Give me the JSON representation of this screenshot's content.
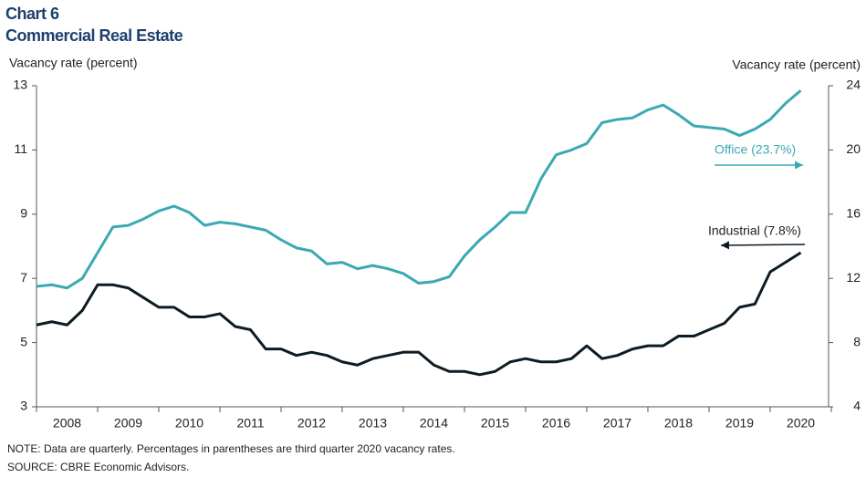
{
  "chart_data": {
    "type": "line",
    "title": "Chart 6",
    "subtitle": "Commercial Real Estate",
    "ylabel": "Vacancy rate (percent)",
    "y2label": "Vacancy rate (percent)",
    "note": "NOTE: Data are quarterly. Percentages in parentheses are third quarter 2020 vacancy rates.",
    "source": "SOURCE: CBRE Economic Advisors.",
    "categories": [
      "2008",
      "2009",
      "2010",
      "2011",
      "2012",
      "2013",
      "2014",
      "2015",
      "2016",
      "2017",
      "2018",
      "2019",
      "2020"
    ],
    "x": [
      2008,
      2008.25,
      2008.5,
      2008.75,
      2009,
      2009.25,
      2009.5,
      2009.75,
      2010,
      2010.25,
      2010.5,
      2010.75,
      2011,
      2011.25,
      2011.5,
      2011.75,
      2012,
      2012.25,
      2012.5,
      2012.75,
      2013,
      2013.25,
      2013.5,
      2013.75,
      2014,
      2014.25,
      2014.5,
      2014.75,
      2015,
      2015.25,
      2015.5,
      2015.75,
      2016,
      2016.25,
      2016.5,
      2016.75,
      2017,
      2017.25,
      2017.5,
      2017.75,
      2018,
      2018.25,
      2018.5,
      2018.75,
      2019,
      2019.25,
      2019.5,
      2019.75,
      2020,
      2020.25,
      2020.5
    ],
    "xlim": [
      2008,
      2021
    ],
    "xticks": [
      2008,
      2009,
      2010,
      2011,
      2012,
      2013,
      2014,
      2015,
      2016,
      2017,
      2018,
      2019,
      2020,
      2021
    ],
    "ylim": [
      3,
      13
    ],
    "yticks": [
      3,
      5,
      7,
      9,
      11,
      13
    ],
    "y2lim": [
      4,
      24
    ],
    "y2ticks": [
      4,
      8,
      12,
      16,
      20,
      24
    ],
    "grid": false,
    "series": [
      {
        "name": "Industrial",
        "color": "#0d1c24",
        "values": [
          5.55,
          5.65,
          5.55,
          6.0,
          6.8,
          6.8,
          6.7,
          6.4,
          6.1,
          6.1,
          5.8,
          5.8,
          5.9,
          5.5,
          5.4,
          4.8,
          4.8,
          4.6,
          4.7,
          4.6,
          4.4,
          4.3,
          4.5,
          4.6,
          4.7,
          4.7,
          4.3,
          4.1,
          4.1,
          4.0,
          4.1,
          4.4,
          4.5,
          4.4,
          4.4,
          4.5,
          4.9,
          4.5,
          4.6,
          4.8,
          4.9,
          4.9,
          5.2,
          5.2,
          5.4,
          5.6,
          6.1,
          6.2,
          7.2,
          7.5,
          7.8
        ]
      },
      {
        "name": "Office",
        "color": "#3aa9b4",
        "axis": "y2",
        "values": [
          11.5,
          11.6,
          11.4,
          12.0,
          13.6,
          15.2,
          15.3,
          15.7,
          16.2,
          16.5,
          16.1,
          15.3,
          15.5,
          15.4,
          15.2,
          15.0,
          14.4,
          13.9,
          13.7,
          12.9,
          13.0,
          12.6,
          12.8,
          12.6,
          12.3,
          11.7,
          11.8,
          12.1,
          13.4,
          14.4,
          15.2,
          16.1,
          16.1,
          18.2,
          19.7,
          20.0,
          20.4,
          21.7,
          21.9,
          22.0,
          22.5,
          22.8,
          22.2,
          21.5,
          21.4,
          21.3,
          20.9,
          21.3,
          21.9,
          22.9,
          23.7
        ]
      }
    ],
    "annotations": [
      {
        "text": "Office (23.7%)"
      },
      {
        "text": "Industrial  (7.8%)"
      }
    ]
  }
}
